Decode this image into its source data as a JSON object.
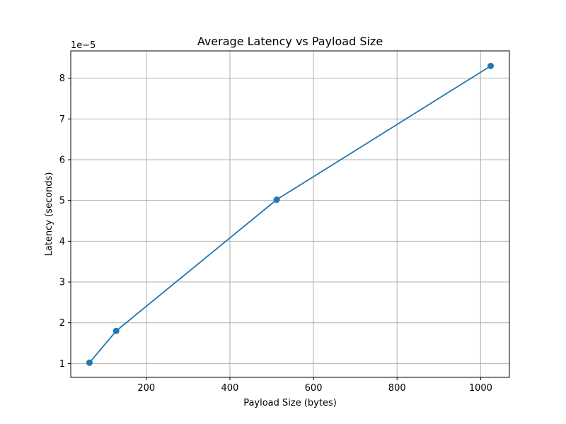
{
  "chart_data": {
    "type": "line",
    "title": "Average Latency vs Payload Size",
    "xlabel": "Payload Size (bytes)",
    "ylabel": "Latency (seconds)",
    "y_offset_label": "1e−5",
    "x": [
      64,
      128,
      512,
      1024
    ],
    "series": [
      {
        "values": [
          1.02e-05,
          1.8e-05,
          5.02e-05,
          8.3e-05
        ],
        "color": "#1f77b4",
        "marker": "circle"
      }
    ],
    "xlim": [
      19.2,
      1068.8
    ],
    "ylim": [
      6.6e-06,
      8.67e-05
    ],
    "x_ticks": [
      200,
      400,
      600,
      800,
      1000
    ],
    "x_tick_labels": [
      "200",
      "400",
      "600",
      "800",
      "1000"
    ],
    "y_ticks": [
      1e-05,
      2e-05,
      3e-05,
      4e-05,
      5e-05,
      6e-05,
      7e-05,
      8e-05
    ],
    "y_tick_labels": [
      "1",
      "2",
      "3",
      "4",
      "5",
      "6",
      "7",
      "8"
    ],
    "grid": true,
    "legend": "none",
    "colors": {
      "grid": "#b0b0b0",
      "axes": "#000000",
      "line": "#1f77b4"
    }
  }
}
